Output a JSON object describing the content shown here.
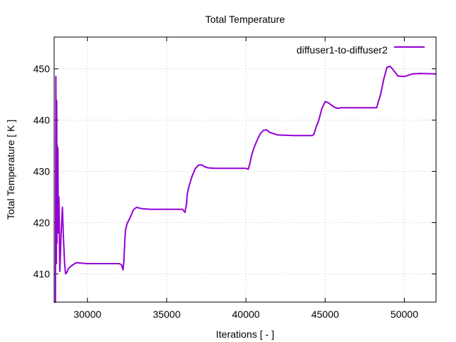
{
  "chart_data": {
    "type": "line",
    "title": "Total Temperature",
    "xlabel": "Iterations [ - ]",
    "ylabel": "Total Temperature [ K ]",
    "xlim": [
      27900,
      52000
    ],
    "ylim": [
      404.5,
      456.2
    ],
    "xticks": [
      30000,
      35000,
      40000,
      45000,
      50000
    ],
    "yticks": [
      410,
      420,
      430,
      440,
      450
    ],
    "grid": true,
    "legend_position": "top-right",
    "series": [
      {
        "name": "diffuser1-to-diffuser2",
        "color": "#9400d3",
        "x": [
          27900,
          27980,
          28010,
          28040,
          28060,
          28080,
          28100,
          28120,
          28140,
          28160,
          28200,
          28260,
          28340,
          28420,
          28480,
          28560,
          28620,
          28700,
          28800,
          29000,
          29300,
          29600,
          30000,
          31000,
          32000,
          32150,
          32250,
          32300,
          32350,
          32400,
          32500,
          32700,
          32900,
          33100,
          33300,
          33500,
          34000,
          35000,
          36000,
          36150,
          36250,
          36300,
          36400,
          36600,
          36800,
          37000,
          37200,
          37400,
          37600,
          38000,
          39000,
          40000,
          40150,
          40250,
          40350,
          40500,
          40700,
          40900,
          41100,
          41300,
          41500,
          42000,
          43000,
          44200,
          44300,
          44450,
          44600,
          44800,
          45000,
          45200,
          45400,
          45600,
          45800,
          46000,
          46500,
          47500,
          48250,
          48350,
          48500,
          48700,
          48900,
          49100,
          49300,
          49600,
          50000,
          50500,
          51000,
          52000
        ],
        "y": [
          404.5,
          404.5,
          448.5,
          412.0,
          443.8,
          416.0,
          435.0,
          425.0,
          434.5,
          418.0,
          425.0,
          410.5,
          418.0,
          423.0,
          417.5,
          412.0,
          410.0,
          410.3,
          411.0,
          411.6,
          412.2,
          412.1,
          412.0,
          412.0,
          412.0,
          411.8,
          410.8,
          412.5,
          416.0,
          418.5,
          419.8,
          421.0,
          422.5,
          423.0,
          422.8,
          422.7,
          422.6,
          422.6,
          422.6,
          422.0,
          423.5,
          425.5,
          427.0,
          429.0,
          430.5,
          431.2,
          431.3,
          430.9,
          430.7,
          430.6,
          430.6,
          430.6,
          430.4,
          431.5,
          433.0,
          434.5,
          436.0,
          437.3,
          438.0,
          438.1,
          437.6,
          437.1,
          437.0,
          437.0,
          437.3,
          438.8,
          440.0,
          442.3,
          443.6,
          443.4,
          442.9,
          442.5,
          442.3,
          442.4,
          442.4,
          442.4,
          442.4,
          443.5,
          445.0,
          448.0,
          450.3,
          450.5,
          449.8,
          448.6,
          448.5,
          449.0,
          449.1,
          449.0
        ]
      }
    ]
  }
}
